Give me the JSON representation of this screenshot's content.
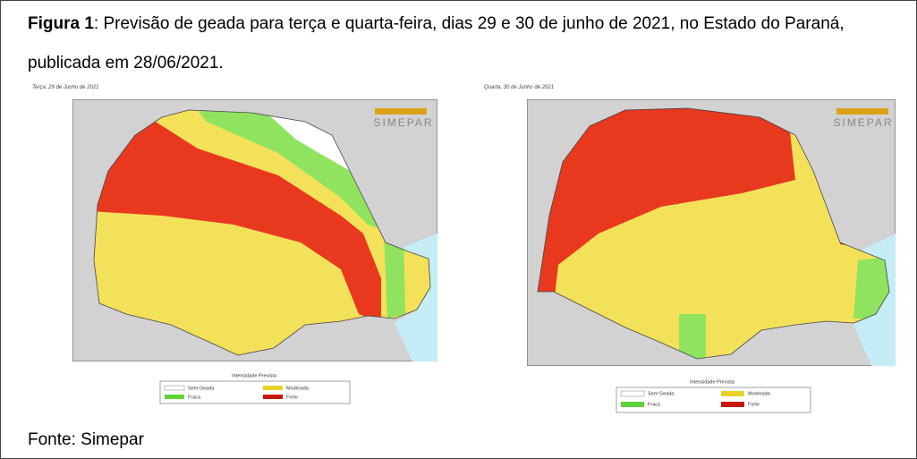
{
  "caption": {
    "label": "Figura 1",
    "text": ": Previsão de geada para terça e quarta-feira, dias 29 e 30 de junho de 2021, no Estado do Paraná, publicada em 28/06/2021."
  },
  "maps": [
    {
      "title": "Terça, 29 de Junho de 2021",
      "logo": "SIMEPAR",
      "legend": {
        "title": "Intensidade Prevista",
        "items": [
          "Sem Geada",
          "Fraca",
          "Moderada",
          "Forte"
        ]
      }
    },
    {
      "title": "Quarta, 30 de Junho de 2021",
      "logo": "SIMEPAR",
      "legend": {
        "title": "Intensidade Prevista",
        "items": [
          "Sem Geada",
          "Fraca",
          "Moderada",
          "Forte"
        ]
      }
    }
  ],
  "source": "Fonte: Simepar"
}
